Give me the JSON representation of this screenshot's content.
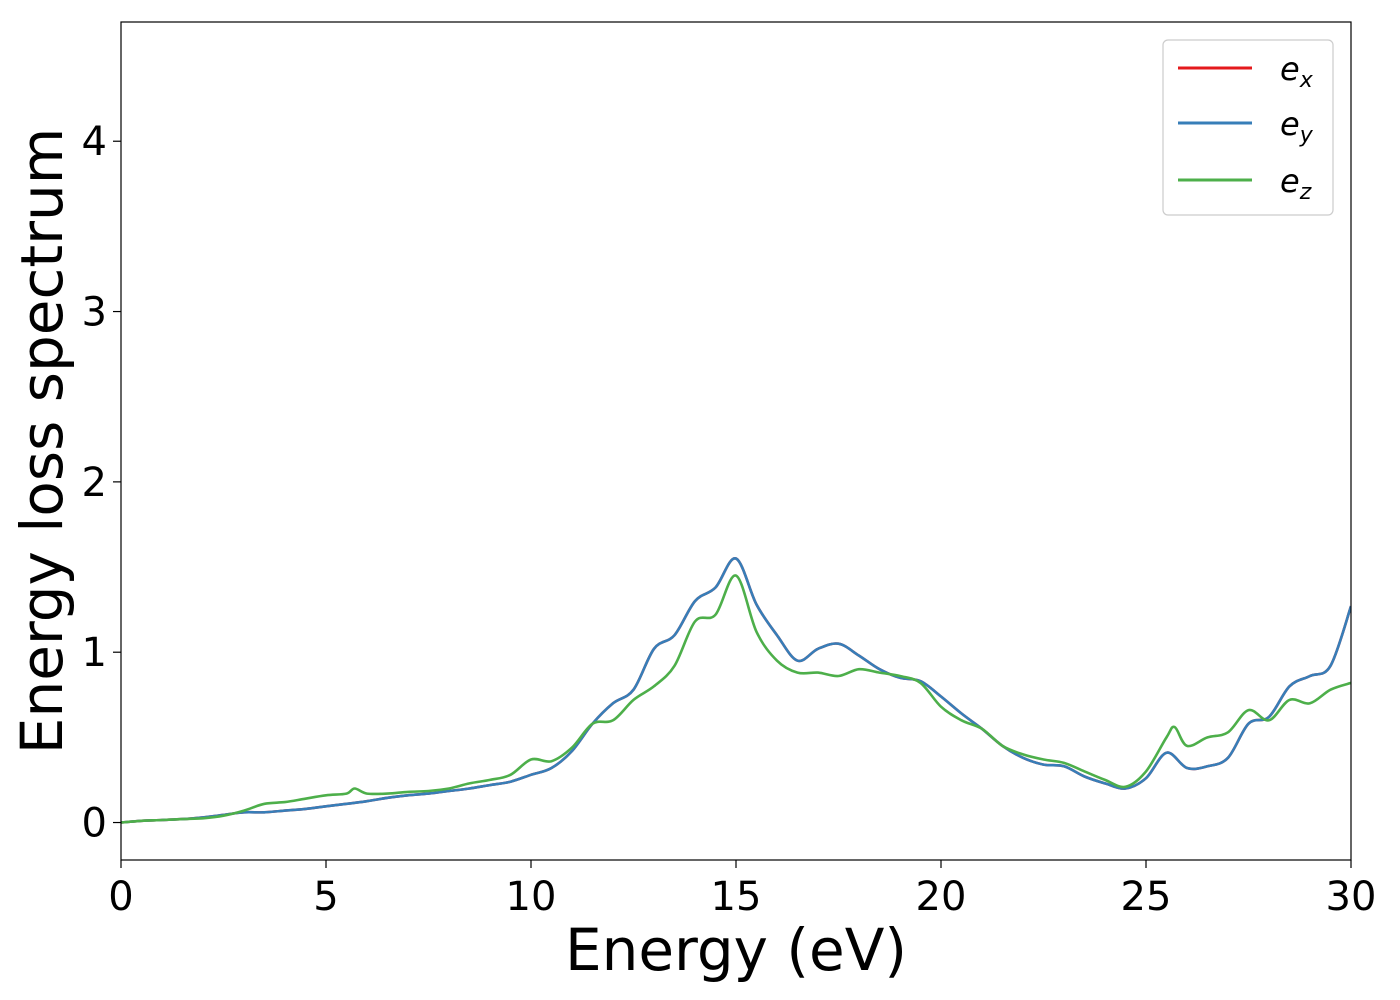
{
  "chart_data": {
    "type": "line",
    "title": "",
    "xlabel": "Energy (eV)",
    "ylabel": "Energy loss spectrum",
    "xlim": [
      0,
      30
    ],
    "ylim": [
      -0.22,
      4.7
    ],
    "xticks": [
      0,
      5,
      10,
      15,
      20,
      25,
      30
    ],
    "xtick_labels": [
      "0",
      "5",
      "10",
      "15",
      "20",
      "25",
      "30"
    ],
    "yticks": [
      0,
      1,
      2,
      3,
      4
    ],
    "ytick_labels": [
      "0",
      "1",
      "2",
      "3",
      "4"
    ],
    "grid": false,
    "legend": {
      "placement": "top-right",
      "entries": [
        {
          "base": "e",
          "sub": "x",
          "color": "#e41a1c"
        },
        {
          "base": "e",
          "sub": "y",
          "color": "#377eb8"
        },
        {
          "base": "e",
          "sub": "z",
          "color": "#4daf4a"
        }
      ]
    },
    "series": [
      {
        "name": "e_x",
        "color": "#e41a1c",
        "x": [
          0,
          0.5,
          1,
          1.5,
          2,
          2.5,
          3,
          3.5,
          4,
          4.5,
          5,
          5.5,
          6,
          6.5,
          7,
          7.5,
          8,
          8.5,
          9,
          9.5,
          10,
          10.5,
          11,
          11.5,
          12,
          12.5,
          13,
          13.5,
          14,
          14.5,
          15,
          15.5,
          16,
          16.5,
          17,
          17.5,
          18,
          18.5,
          19,
          19.5,
          20,
          20.5,
          21,
          21.5,
          22,
          22.5,
          23,
          23.5,
          24,
          24.5,
          25,
          25.5,
          26,
          26.5,
          27,
          27.5,
          28,
          28.5,
          29,
          29.5,
          30
        ],
        "y": [
          0.0,
          0.01,
          0.015,
          0.02,
          0.03,
          0.045,
          0.06,
          0.06,
          0.07,
          0.08,
          0.095,
          0.11,
          0.125,
          0.145,
          0.16,
          0.17,
          0.185,
          0.2,
          0.22,
          0.24,
          0.28,
          0.32,
          0.42,
          0.58,
          0.7,
          0.78,
          1.02,
          1.1,
          1.3,
          1.38,
          1.55,
          1.28,
          1.1,
          0.95,
          1.02,
          1.05,
          0.98,
          0.9,
          0.85,
          0.83,
          0.74,
          0.64,
          0.55,
          0.45,
          0.38,
          0.34,
          0.33,
          0.27,
          0.23,
          0.2,
          0.26,
          0.41,
          0.32,
          0.33,
          0.38,
          0.58,
          0.62,
          0.8,
          0.86,
          0.92,
          1.27
        ]
      },
      {
        "name": "e_y",
        "color": "#377eb8",
        "x": [
          0,
          0.5,
          1,
          1.5,
          2,
          2.5,
          3,
          3.5,
          4,
          4.5,
          5,
          5.5,
          6,
          6.5,
          7,
          7.5,
          8,
          8.5,
          9,
          9.5,
          10,
          10.5,
          11,
          11.5,
          12,
          12.5,
          13,
          13.5,
          14,
          14.5,
          15,
          15.5,
          16,
          16.5,
          17,
          17.5,
          18,
          18.5,
          19,
          19.5,
          20,
          20.5,
          21,
          21.5,
          22,
          22.5,
          23,
          23.5,
          24,
          24.5,
          25,
          25.5,
          26,
          26.5,
          27,
          27.5,
          28,
          28.5,
          29,
          29.5,
          30
        ],
        "y": [
          0.0,
          0.01,
          0.015,
          0.02,
          0.03,
          0.045,
          0.06,
          0.06,
          0.07,
          0.08,
          0.095,
          0.11,
          0.125,
          0.145,
          0.16,
          0.17,
          0.185,
          0.2,
          0.22,
          0.24,
          0.28,
          0.32,
          0.42,
          0.58,
          0.7,
          0.78,
          1.02,
          1.1,
          1.3,
          1.38,
          1.55,
          1.28,
          1.1,
          0.95,
          1.02,
          1.05,
          0.98,
          0.9,
          0.85,
          0.83,
          0.74,
          0.64,
          0.55,
          0.45,
          0.38,
          0.34,
          0.33,
          0.27,
          0.23,
          0.2,
          0.26,
          0.41,
          0.32,
          0.33,
          0.38,
          0.58,
          0.62,
          0.8,
          0.86,
          0.92,
          1.27
        ]
      },
      {
        "name": "e_z",
        "color": "#4daf4a",
        "x": [
          0,
          0.5,
          1,
          1.5,
          2,
          2.5,
          3,
          3.5,
          4,
          4.5,
          5,
          5.5,
          5.7,
          6,
          6.5,
          7,
          7.5,
          8,
          8.5,
          9,
          9.5,
          10,
          10.5,
          11,
          11.5,
          12,
          12.5,
          13,
          13.5,
          14,
          14.5,
          15,
          15.5,
          16,
          16.5,
          17,
          17.5,
          18,
          18.5,
          19,
          19.5,
          20,
          20.5,
          21,
          21.5,
          22,
          22.5,
          23,
          23.5,
          24,
          24.5,
          25,
          25.5,
          25.7,
          26,
          26.5,
          27,
          27.5,
          28,
          28.5,
          29,
          29.5,
          30
        ],
        "y": [
          0.0,
          0.01,
          0.015,
          0.02,
          0.025,
          0.04,
          0.07,
          0.11,
          0.12,
          0.14,
          0.16,
          0.17,
          0.2,
          0.17,
          0.17,
          0.18,
          0.185,
          0.2,
          0.23,
          0.25,
          0.28,
          0.37,
          0.36,
          0.44,
          0.58,
          0.6,
          0.72,
          0.8,
          0.92,
          1.18,
          1.22,
          1.45,
          1.12,
          0.95,
          0.88,
          0.88,
          0.86,
          0.9,
          0.88,
          0.86,
          0.82,
          0.68,
          0.6,
          0.55,
          0.45,
          0.4,
          0.37,
          0.35,
          0.3,
          0.25,
          0.21,
          0.3,
          0.5,
          0.56,
          0.45,
          0.5,
          0.53,
          0.66,
          0.6,
          0.72,
          0.7,
          0.78,
          0.82
        ]
      }
    ]
  }
}
